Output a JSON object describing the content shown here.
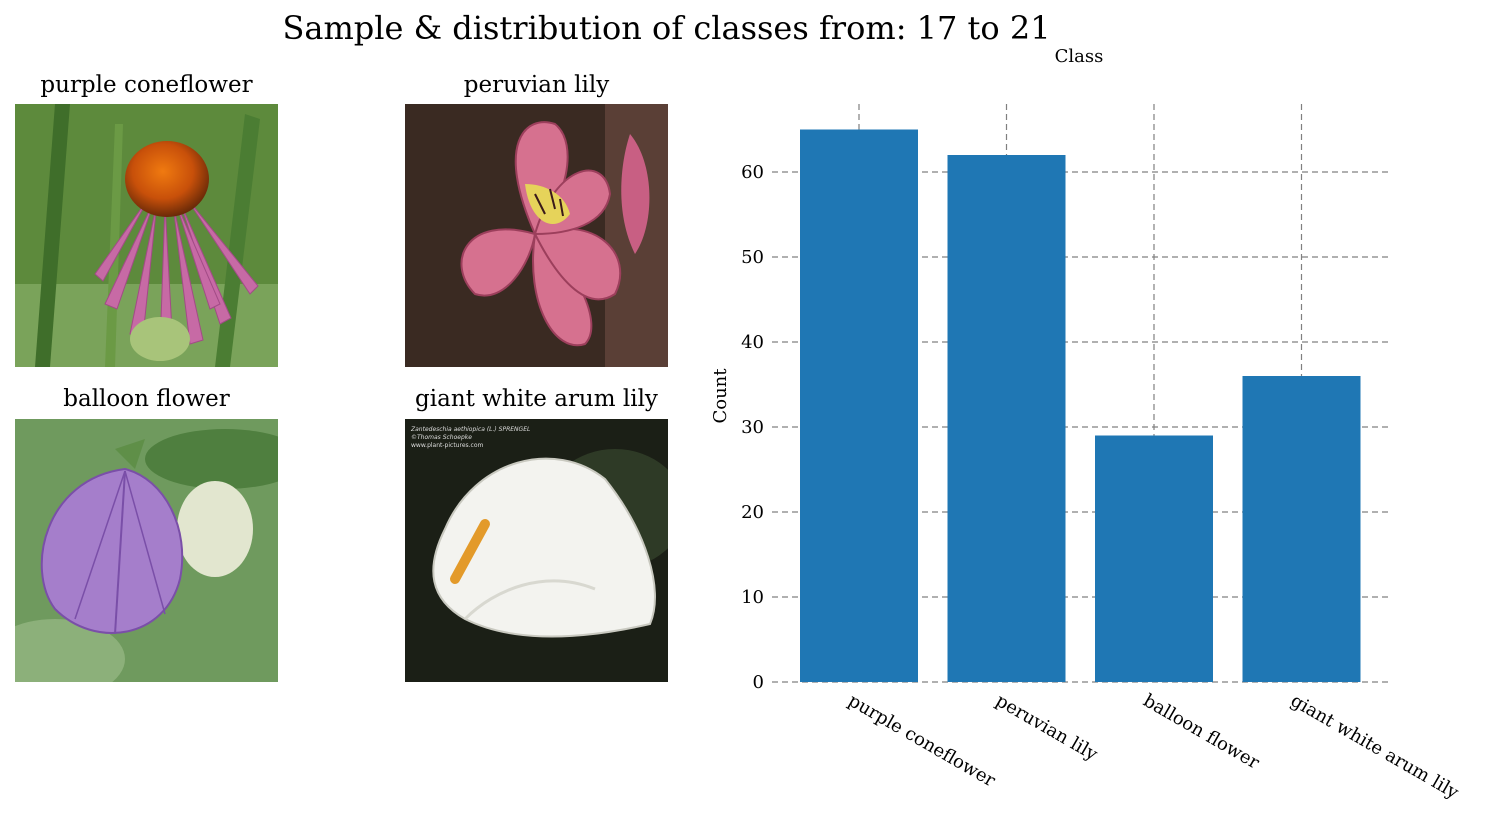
{
  "figure": {
    "suptitle": "Sample & distribution of classes from: 17 to 21"
  },
  "samples": [
    {
      "label": "purple coneflower"
    },
    {
      "label": "peruvian lily"
    },
    {
      "label": "balloon flower"
    },
    {
      "label": "giant white arum lily",
      "watermark": [
        "Zantedeschia aethiopica (L.) SPRENGEL",
        "©Thomas Schoepke",
        "www.plant-pictures.com"
      ]
    }
  ],
  "colors": {
    "bar": "#1f77b4",
    "grid": "#808080"
  },
  "chart_data": {
    "type": "bar",
    "categories": [
      "purple coneflower",
      "peruvian lily",
      "balloon flower",
      "giant white arum lily"
    ],
    "values": [
      65,
      62,
      29,
      36
    ],
    "title": "Class",
    "xlabel": "",
    "ylabel": "Count",
    "ylim": [
      0,
      68
    ],
    "yticks": [
      0,
      10,
      20,
      30,
      40,
      50,
      60
    ],
    "grid": true,
    "grid_style": "dashed"
  }
}
